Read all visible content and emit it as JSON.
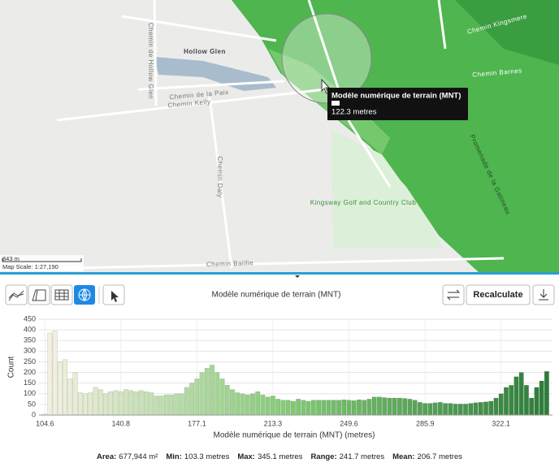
{
  "map": {
    "labels": [
      "Hollow Glen",
      "Chemin de la Paix",
      "Chemin Kelly",
      "Chemin de Hollow Glen",
      "Chemin Daly",
      "Chemin Baillie",
      "Kingsway Golf and Country Club",
      "Chemin Kingsmere",
      "Chemin Barnes",
      "Promenade de la Gatineau"
    ],
    "tooltip": {
      "title": "Modèle numérique de terrain (MNT)",
      "value": "122.3 metres"
    },
    "scale_distance": "843 m",
    "scale_ratio": "Map Scale: 1:27,190"
  },
  "toolbar": {
    "recalculate": "Recalculate"
  },
  "stats": [
    {
      "label": "Area:",
      "value": "677,944 m²"
    },
    {
      "label": "Min:",
      "value": "103.3 metres"
    },
    {
      "label": "Max:",
      "value": "345.1 metres"
    },
    {
      "label": "Range:",
      "value": "241.7 metres"
    },
    {
      "label": "Mean:",
      "value": "206.7 metres"
    }
  ],
  "chart_data": {
    "type": "histogram",
    "title": "Modèle numérique de terrain (MNT)",
    "x_label": "Modèle numérique de terrain (MNT) (metres)",
    "y_label": "Count",
    "bins": [
      103.3,
      105.72,
      108.14,
      110.55,
      112.97,
      115.39,
      117.81,
      120.23,
      122.64,
      125.06,
      127.48,
      129.9,
      132.32,
      134.73,
      137.15,
      139.57,
      141.99,
      144.41,
      146.82,
      149.24,
      151.66,
      154.08,
      156.5,
      158.91,
      161.33,
      163.75,
      166.17,
      168.59,
      171,
      173.42,
      175.84,
      178.26,
      180.68,
      183.09,
      185.51,
      187.93,
      190.35,
      192.77,
      195.18,
      197.6,
      200.02,
      202.44,
      204.86,
      207.27,
      209.69,
      212.11,
      214.53,
      216.95,
      219.36,
      221.78,
      224.2,
      226.62,
      229.04,
      231.45,
      233.87,
      236.29,
      238.71,
      241.13,
      243.54,
      245.96,
      248.38,
      250.8,
      253.22,
      255.63,
      258.05,
      260.47,
      262.89,
      265.31,
      267.72,
      270.14,
      272.56,
      274.98,
      277.4,
      279.81,
      282.23,
      284.65,
      287.07,
      289.49,
      291.9,
      294.32,
      296.74,
      299.16,
      301.58,
      303.99,
      306.41,
      308.83,
      311.25,
      313.67,
      316.08,
      318.5,
      320.92,
      323.34,
      325.76,
      328.17,
      330.59,
      333.01,
      335.43,
      337.85,
      340.26,
      342.68,
      345.1
    ],
    "values": [
      5,
      385,
      395,
      250,
      260,
      170,
      200,
      105,
      100,
      105,
      130,
      120,
      100,
      110,
      115,
      110,
      120,
      115,
      110,
      115,
      110,
      105,
      90,
      90,
      95,
      95,
      100,
      100,
      130,
      150,
      170,
      200,
      220,
      235,
      200,
      170,
      140,
      120,
      105,
      100,
      95,
      100,
      110,
      95,
      85,
      90,
      75,
      70,
      70,
      65,
      75,
      70,
      65,
      70,
      70,
      70,
      70,
      70,
      70,
      72,
      70,
      68,
      72,
      70,
      75,
      85,
      85,
      82,
      80,
      80,
      80,
      78,
      75,
      70,
      60,
      55,
      55,
      58,
      60,
      55,
      55,
      52,
      52,
      52,
      55,
      58,
      60,
      62,
      65,
      80,
      100,
      130,
      140,
      180,
      200,
      140,
      80,
      130,
      160,
      205
    ],
    "colormap": [
      "#f6f1e2",
      "#7fc972",
      "#2d7d3a"
    ],
    "xlim": [
      103.3,
      345.1
    ],
    "xticks": [
      104.6,
      140.8,
      177.1,
      213.3,
      249.6,
      285.9,
      322.1
    ],
    "ylim": [
      0,
      450
    ],
    "yticks": [
      0,
      50,
      100,
      150,
      200,
      250,
      300,
      350,
      400,
      450
    ],
    "grid": true
  }
}
